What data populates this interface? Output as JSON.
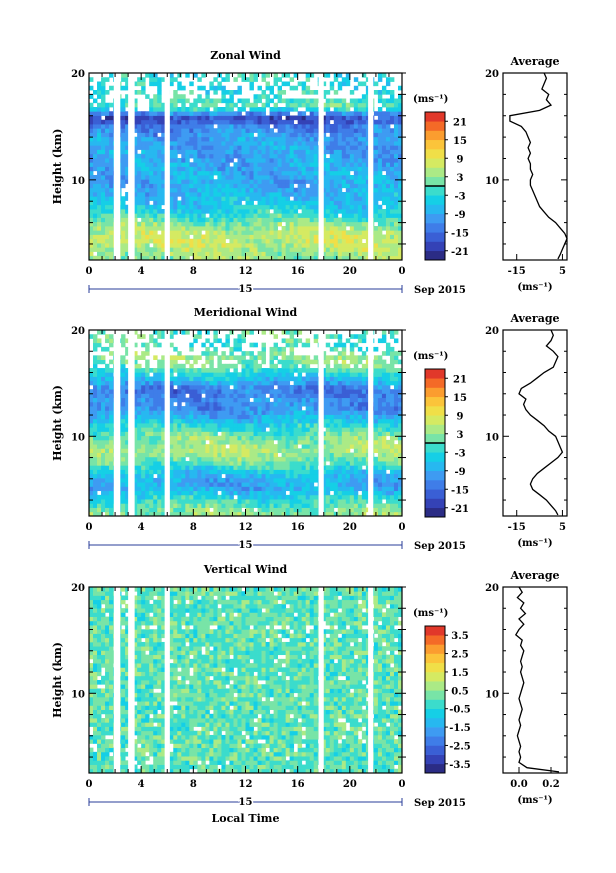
{
  "chart_data": [
    {
      "type": "heatmap",
      "title": "Zonal Wind",
      "ylabel": "Height (km)",
      "yticks": [
        "20",
        "10"
      ],
      "ylim": [
        2.5,
        20
      ],
      "x_ticks": [
        "0",
        "4",
        "8",
        "12",
        "16",
        "20",
        "0"
      ],
      "xlim": [
        0,
        24
      ],
      "date_label": "15",
      "month_label": "Sep 2015",
      "colorbar": {
        "unit": "(ms⁻¹)",
        "range": [
          -24,
          24
        ],
        "ticks": [
          "21",
          "15",
          "9",
          "3",
          "-3",
          "-9",
          "-15",
          "-21"
        ]
      },
      "data_gaps_hours": [
        [
          1.9,
          2.4
        ],
        [
          3.0,
          3.5
        ],
        [
          5.8,
          6.2
        ],
        [
          17.6,
          18.0
        ],
        [
          21.4,
          21.8
        ]
      ],
      "average_profile": {
        "title": "Average",
        "xlabel": "(ms⁻¹)",
        "xticks": [
          "-15",
          "5"
        ],
        "yticks": [
          "20",
          "10"
        ],
        "xlim": [
          -21,
          7
        ],
        "heights_km": [
          20,
          19.5,
          19,
          18.5,
          18,
          17.5,
          17,
          16.5,
          16,
          15.5,
          15,
          14.5,
          14,
          13.5,
          13,
          12.5,
          12,
          11.5,
          11,
          10.5,
          10,
          9.5,
          9,
          8.5,
          8,
          7.5,
          7,
          6.5,
          6,
          5.5,
          5,
          4.5,
          4,
          3.5,
          3,
          2.6
        ],
        "values_ms": [
          -3,
          -2,
          -3,
          -4,
          -1,
          -2,
          0,
          -5,
          -18,
          -18,
          -13,
          -11,
          -10,
          -9,
          -10,
          -9,
          -10,
          -9,
          -9,
          -8,
          -9,
          -9,
          -8,
          -7,
          -6,
          -5,
          -3,
          -1,
          2,
          4,
          6,
          7,
          6,
          5,
          4,
          3
        ]
      }
    },
    {
      "type": "heatmap",
      "title": "Meridional Wind",
      "ylabel": "Height (km)",
      "yticks": [
        "20",
        "10"
      ],
      "ylim": [
        2.5,
        20
      ],
      "x_ticks": [
        "0",
        "4",
        "8",
        "12",
        "16",
        "20",
        "0"
      ],
      "xlim": [
        0,
        24
      ],
      "date_label": "15",
      "month_label": "Sep 2015",
      "colorbar": {
        "unit": "(ms⁻¹)",
        "range": [
          -24,
          24
        ],
        "ticks": [
          "21",
          "15",
          "9",
          "3",
          "-3",
          "-9",
          "-15",
          "-21"
        ]
      },
      "data_gaps_hours": [
        [
          1.9,
          2.4
        ],
        [
          3.0,
          3.5
        ],
        [
          5.8,
          6.2
        ],
        [
          17.6,
          18.0
        ],
        [
          21.4,
          21.8
        ]
      ],
      "average_profile": {
        "title": "Average",
        "xlabel": "(ms⁻¹)",
        "xticks": [
          "-15",
          "5"
        ],
        "yticks": [
          "20",
          "10"
        ],
        "xlim": [
          -21,
          7
        ],
        "heights_km": [
          20,
          19.5,
          19,
          18.5,
          18,
          17.5,
          17,
          16.5,
          16,
          15.5,
          15,
          14.5,
          14,
          13.5,
          13,
          12.5,
          12,
          11.5,
          11,
          10.5,
          10,
          9.5,
          9,
          8.5,
          8,
          7.5,
          7,
          6.5,
          6,
          5.5,
          5,
          4.5,
          4,
          3.5,
          3,
          2.6
        ],
        "values_ms": [
          0,
          1,
          0,
          -2,
          1,
          3,
          2,
          1,
          -3,
          -6,
          -9,
          -13,
          -14,
          -11,
          -12,
          -11,
          -9,
          -6,
          -3,
          -1,
          2,
          3,
          4,
          5,
          3,
          0,
          -3,
          -6,
          -8,
          -9,
          -8,
          -5,
          -2,
          0,
          2,
          3
        ]
      }
    },
    {
      "type": "heatmap",
      "title": "Vertical Wind",
      "ylabel": "Height (km)",
      "xlabel": "Local Time",
      "yticks": [
        "20",
        "10"
      ],
      "ylim": [
        2.5,
        20
      ],
      "x_ticks": [
        "0",
        "4",
        "8",
        "12",
        "16",
        "20",
        "0"
      ],
      "xlim": [
        0,
        24
      ],
      "date_label": "15",
      "month_label": "Sep 2015",
      "colorbar": {
        "unit": "(ms⁻¹)",
        "range": [
          -4,
          4
        ],
        "ticks": [
          "3.5",
          "2.5",
          "1.5",
          "0.5",
          "-0.5",
          "-1.5",
          "-2.5",
          "-3.5"
        ]
      },
      "data_gaps_hours": [
        [
          1.9,
          2.4
        ],
        [
          3.0,
          3.5
        ],
        [
          5.8,
          6.2
        ],
        [
          17.6,
          18.0
        ],
        [
          21.4,
          21.8
        ]
      ],
      "average_profile": {
        "title": "Average",
        "xlabel": "(ms⁻¹)",
        "xticks": [
          "0.0",
          "0.2"
        ],
        "yticks": [
          "20",
          "10"
        ],
        "xlim": [
          -0.1,
          0.3
        ],
        "heights_km": [
          20,
          19.5,
          19,
          18.5,
          18,
          17.5,
          17,
          16.5,
          16,
          15.5,
          15,
          14.5,
          14,
          13.5,
          13,
          12.5,
          12,
          11.5,
          11,
          10.5,
          10,
          9.5,
          9,
          8.5,
          8,
          7.5,
          7,
          6.5,
          6,
          5.5,
          5,
          4.5,
          4,
          3.5,
          3,
          2.6
        ],
        "values_ms": [
          0.0,
          0.02,
          -0.01,
          0.03,
          0.01,
          0.04,
          0.0,
          0.03,
          0.0,
          -0.02,
          0.02,
          0.01,
          0.03,
          0.02,
          0.01,
          0.02,
          0.01,
          0.02,
          0.03,
          0.02,
          0.01,
          0.0,
          0.01,
          0.02,
          0.01,
          0.0,
          0.01,
          0.0,
          -0.01,
          0.0,
          0.01,
          0.0,
          0.01,
          0.0,
          0.05,
          0.25
        ]
      }
    }
  ]
}
